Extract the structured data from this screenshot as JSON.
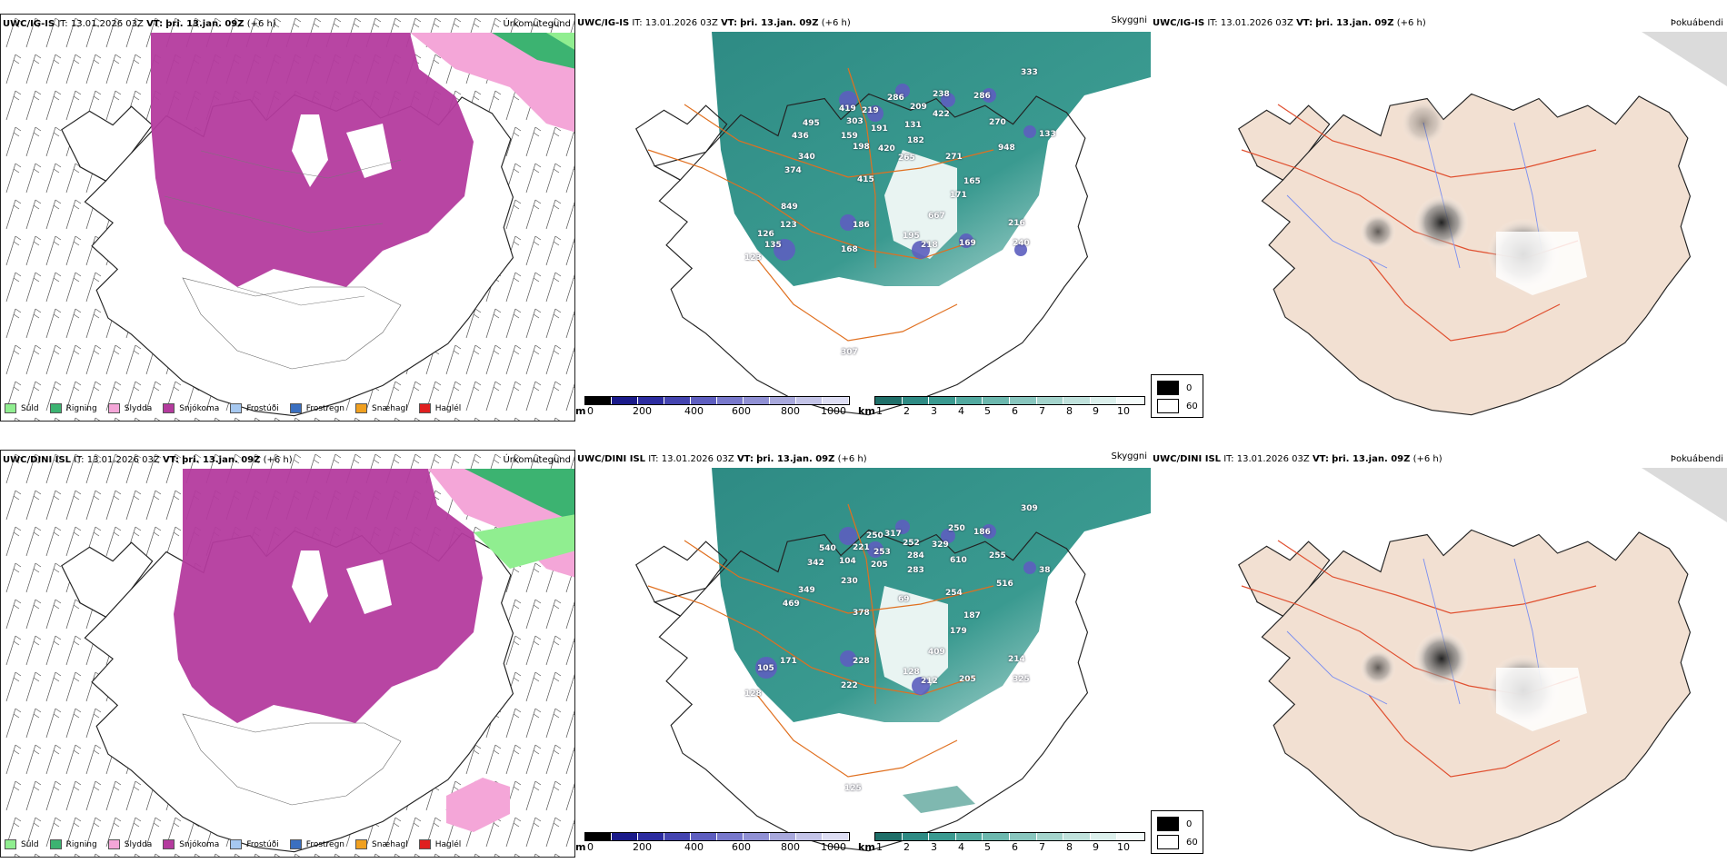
{
  "rows": [
    {
      "model": "UWC/IG-IS",
      "it_label": "IT:",
      "it_value": "13.01.2026 03Z",
      "vt_label": "VT:",
      "vt_value": "þri. 13.jan. 09Z",
      "offset": "(+6 h)",
      "cloud_labels": [
        "333",
        "238",
        "286",
        "209",
        "422",
        "286",
        "270",
        "419",
        "219",
        "303",
        "191",
        "131",
        "495",
        "436",
        "159",
        "198",
        "420",
        "182",
        "265",
        "340",
        "374",
        "415",
        "271",
        "165",
        "948",
        "133",
        "171",
        "849",
        "667",
        "123",
        "186",
        "216",
        "126",
        "135",
        "195",
        "218",
        "169",
        "240",
        "123",
        "168",
        "307"
      ]
    },
    {
      "model": "UWC/DINI ISL",
      "it_label": "IT:",
      "it_value": "13.01.2026 03Z",
      "vt_label": "VT:",
      "vt_value": "þri. 13.jan. 09Z",
      "offset": "(+6 h)",
      "cloud_labels": [
        "309",
        "250",
        "317",
        "250",
        "252",
        "186",
        "540",
        "221",
        "253",
        "329",
        "255",
        "342",
        "104",
        "205",
        "284",
        "610",
        "516",
        "38",
        "230",
        "283",
        "469",
        "349",
        "69",
        "254",
        "378",
        "187",
        "179",
        "409",
        "105",
        "171",
        "228",
        "214",
        "128",
        "222",
        "128",
        "212",
        "205",
        "325",
        "125"
      ]
    }
  ],
  "panel_titles": {
    "precip": "Úrkomutegund",
    "ceiling": "Skyggni",
    "fog": "Þokuábendi"
  },
  "precip_legend": [
    {
      "label": "Súld",
      "color": "#90ee90"
    },
    {
      "label": "Rigning",
      "color": "#3cb371"
    },
    {
      "label": "Slydda",
      "color": "#f4a6d8"
    },
    {
      "label": "Snjókoma",
      "color": "#b43b9e"
    },
    {
      "label": "Frostúði",
      "color": "#a6c8f0"
    },
    {
      "label": "Frostregn",
      "color": "#3a6fc0"
    },
    {
      "label": "Snæhagl",
      "color": "#f0a020"
    },
    {
      "label": "Haglél",
      "color": "#e02020"
    }
  ],
  "altitude_scale": {
    "unit": "m",
    "ticks": [
      "0",
      "200",
      "400",
      "600",
      "800",
      "1000"
    ]
  },
  "visibility_scale": {
    "unit": "km",
    "ticks": [
      "1",
      "2",
      "3",
      "4",
      "5",
      "6",
      "7",
      "8",
      "9",
      "10"
    ]
  },
  "fog_legend": {
    "high": "0",
    "low": "60"
  },
  "colors": {
    "snow": "#b43b9e",
    "sleet": "#f4a6d8",
    "rain": "#3cb371",
    "drizzle": "#90ee90",
    "teal": "#2e8b84",
    "road": "#e07020",
    "land_fog": "#f2e0d2",
    "river": "#7a8ef0"
  }
}
